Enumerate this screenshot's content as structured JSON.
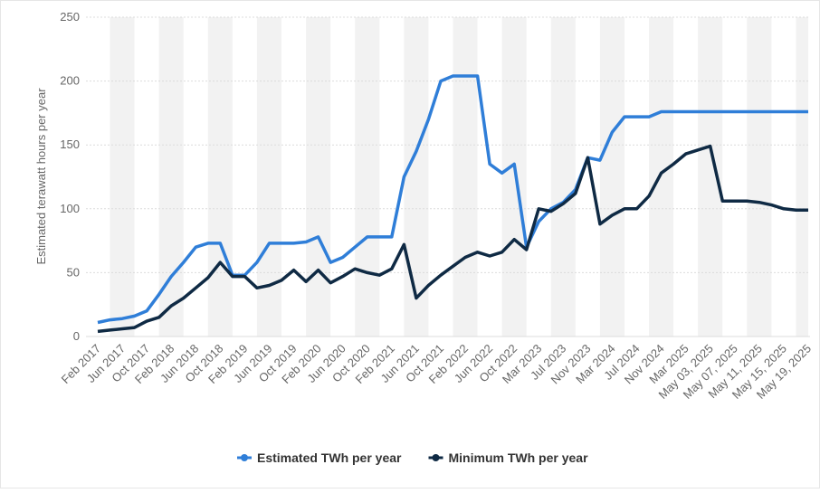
{
  "chart_data": {
    "type": "line",
    "y_label": "Estimated terawatt hours per year",
    "categories": [
      "Feb 2017",
      null,
      "Jun 2017",
      null,
      "Oct 2017",
      null,
      "Feb 2018",
      null,
      "Jun 2018",
      null,
      "Oct 2018",
      null,
      "Feb 2019",
      null,
      "Jun 2019",
      null,
      "Oct 2019",
      null,
      "Feb 2020",
      null,
      "Jun 2020",
      null,
      "Oct 2020",
      null,
      "Feb 2021",
      null,
      "Jun 2021",
      null,
      "Oct 2021",
      null,
      "Feb 2022",
      null,
      "Jun 2022",
      null,
      "Oct 2022",
      null,
      "Mar 2023",
      null,
      "Jul 2023",
      null,
      "Nov 2023",
      null,
      "Mar 2024",
      null,
      "Jul 2024",
      null,
      "Nov 2024",
      null,
      "Mar 2025",
      null,
      "May 03, 2025",
      null,
      "May 07, 2025",
      null,
      "May 11, 2025",
      null,
      "May 15, 2025",
      null,
      "May 19, 2025"
    ],
    "series": [
      {
        "name": "Estimated TWh per year",
        "color": "#2f7ed8",
        "values": [
          11,
          13,
          14,
          16,
          20,
          33,
          47,
          58,
          70,
          73,
          73,
          48,
          48,
          58,
          73,
          73,
          73,
          74,
          78,
          58,
          62,
          70,
          78,
          78,
          78,
          125,
          145,
          170,
          200,
          204,
          204,
          204,
          135,
          128,
          135,
          70,
          90,
          100,
          105,
          115,
          140,
          138,
          160,
          172,
          172,
          172,
          176,
          176,
          176,
          176,
          176,
          176,
          176,
          176,
          176,
          176,
          176,
          176,
          176
        ]
      },
      {
        "name": "Minimum TWh per year",
        "color": "#0f2a44",
        "values": [
          4,
          5,
          6,
          7,
          12,
          15,
          24,
          30,
          38,
          46,
          58,
          47,
          47,
          38,
          40,
          44,
          52,
          43,
          52,
          42,
          47,
          53,
          50,
          48,
          53,
          72,
          30,
          40,
          48,
          55,
          62,
          66,
          63,
          66,
          76,
          68,
          100,
          98,
          104,
          112,
          140,
          88,
          95,
          100,
          100,
          110,
          128,
          135,
          143,
          146,
          149,
          106,
          106,
          106,
          105,
          103,
          100,
          99,
          99
        ]
      }
    ],
    "ylim": [
      0,
      250
    ],
    "yticks": [
      0,
      50,
      100,
      150,
      200,
      250
    ],
    "grid": true,
    "legend": "bottom"
  }
}
